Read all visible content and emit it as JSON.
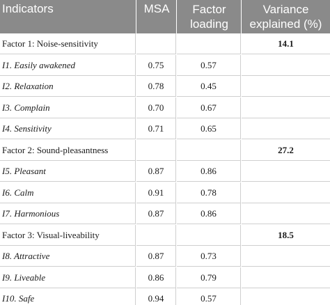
{
  "headers": {
    "indicators": "Indicators",
    "msa": "MSA",
    "factor_line1": "Factor",
    "factor_line2": "loading",
    "variance_line1": "Variance",
    "variance_line2": "explained (%)"
  },
  "rows": [
    {
      "type": "factor",
      "indicator": "Factor 1: Noise-sensitivity",
      "msa": "",
      "loading": "",
      "variance": "14.1"
    },
    {
      "type": "item",
      "indicator": "I1. Easily awakened",
      "msa": "0.75",
      "loading": "0.57",
      "variance": ""
    },
    {
      "type": "item",
      "indicator": "I2. Relaxation",
      "msa": "0.78",
      "loading": "0.45",
      "variance": ""
    },
    {
      "type": "item",
      "indicator": "I3. Complain",
      "msa": "0.70",
      "loading": "0.67",
      "variance": ""
    },
    {
      "type": "item",
      "indicator": "I4. Sensitivity",
      "msa": "0.71",
      "loading": "0.65",
      "variance": ""
    },
    {
      "type": "factor",
      "indicator": "Factor 2: Sound-pleasantness",
      "msa": "",
      "loading": "",
      "variance": "27.2"
    },
    {
      "type": "item",
      "indicator": "I5. Pleasant",
      "msa": "0.87",
      "loading": "0.86",
      "variance": ""
    },
    {
      "type": "item",
      "indicator": "I6. Calm",
      "msa": "0.91",
      "loading": "0.78",
      "variance": ""
    },
    {
      "type": "item",
      "indicator": "I7. Harmonious",
      "msa": "0.87",
      "loading": "0.86",
      "variance": ""
    },
    {
      "type": "factor",
      "indicator": "Factor 3: Visual-liveability",
      "msa": "",
      "loading": "",
      "variance": "18.5"
    },
    {
      "type": "item",
      "indicator": "I8. Attractive",
      "msa": "0.87",
      "loading": "0.73",
      "variance": ""
    },
    {
      "type": "item",
      "indicator": "I9. Liveable",
      "msa": "0.86",
      "loading": "0.79",
      "variance": ""
    },
    {
      "type": "item",
      "indicator": "I10. Safe",
      "msa": "0.94",
      "loading": "0.57",
      "variance": ""
    }
  ]
}
